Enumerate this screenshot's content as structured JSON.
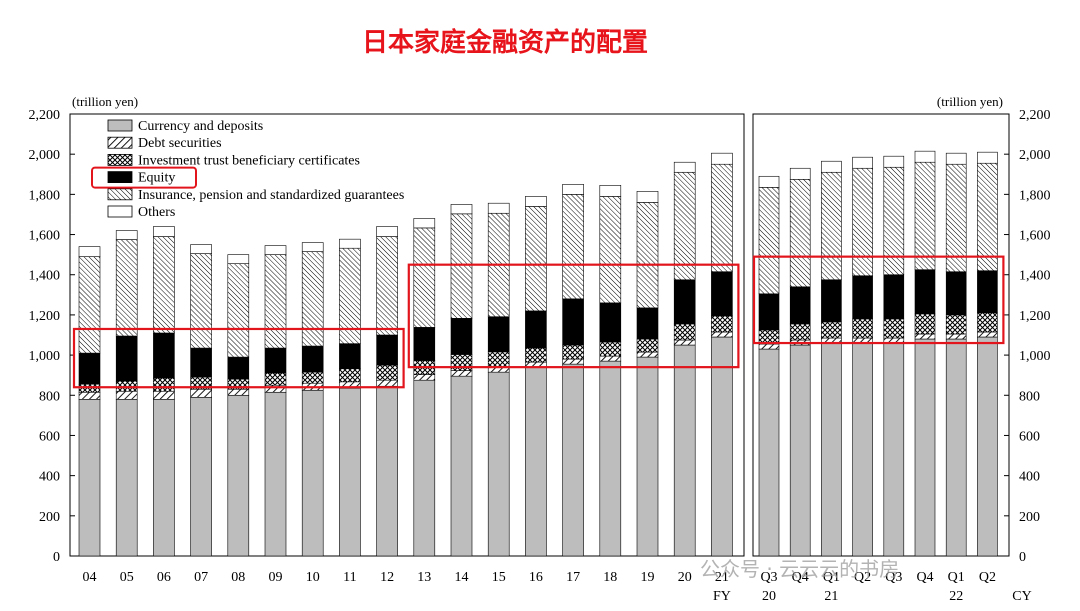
{
  "title": "日本家庭金融资产的配置",
  "watermark": "公众号 · 云云云的书房",
  "chart_data": {
    "type": "bar",
    "stacked": true,
    "unit_left": "(trillion yen)",
    "unit_right": "(trillion yen)",
    "ylim": [
      0,
      2200
    ],
    "yticks": [
      "0",
      "200",
      "400",
      "600",
      "800",
      "1,000",
      "1,200",
      "1,400",
      "1,600",
      "1,800",
      "2,000",
      "2,200"
    ],
    "legend_placement": "top-left",
    "series": [
      {
        "name": "Currency and deposits",
        "color": "#bdbdbd"
      },
      {
        "name": "Debt securities",
        "color": "hatch-diagonal"
      },
      {
        "name": "Investment trust beneficiary certificates",
        "color": "crosshatch"
      },
      {
        "name": "Equity",
        "color": "#000000"
      },
      {
        "name": "Insurance, pension and standardized guarantees",
        "color": "hatch-dense"
      },
      {
        "name": "Others",
        "color": "#ffffff"
      }
    ],
    "annual": {
      "categories": [
        "04",
        "05",
        "06",
        "07",
        "08",
        "09",
        "10",
        "11",
        "12",
        "13",
        "14",
        "15",
        "16",
        "17",
        "18",
        "19",
        "20",
        "21"
      ],
      "axis_note": "FY",
      "currency": [
        780,
        780,
        780,
        790,
        800,
        815,
        825,
        835,
        845,
        875,
        895,
        915,
        940,
        955,
        970,
        990,
        1050,
        1090
      ],
      "debt": [
        35,
        40,
        40,
        40,
        30,
        35,
        35,
        32,
        30,
        28,
        28,
        26,
        25,
        25,
        25,
        25,
        25,
        25
      ],
      "investment_trust": [
        40,
        50,
        65,
        60,
        50,
        60,
        55,
        65,
        75,
        70,
        80,
        75,
        70,
        70,
        70,
        65,
        80,
        80
      ],
      "equity": [
        155,
        225,
        225,
        145,
        110,
        125,
        130,
        125,
        150,
        165,
        180,
        175,
        185,
        230,
        195,
        155,
        220,
        220
      ],
      "insurance": [
        480,
        480,
        480,
        470,
        465,
        465,
        470,
        475,
        490,
        495,
        520,
        515,
        520,
        520,
        530,
        525,
        535,
        535
      ],
      "others": [
        50,
        45,
        50,
        45,
        45,
        45,
        45,
        45,
        50,
        47,
        47,
        50,
        50,
        50,
        55,
        55,
        50,
        55
      ]
    },
    "quarterly": {
      "categories": [
        "Q3",
        "Q4",
        "Q1",
        "Q2",
        "Q3",
        "Q4",
        "Q1",
        "Q2"
      ],
      "year_labels": [
        {
          "label": "20",
          "index": 0
        },
        {
          "label": "21",
          "index": 2
        },
        {
          "label": "22",
          "index": 6
        }
      ],
      "axis_note": "CY",
      "currency": [
        1030,
        1050,
        1060,
        1060,
        1060,
        1080,
        1080,
        1090
      ],
      "debt": [
        25,
        25,
        25,
        25,
        25,
        25,
        25,
        25
      ],
      "investment_trust": [
        70,
        80,
        80,
        95,
        95,
        100,
        95,
        95
      ],
      "equity": [
        180,
        185,
        210,
        215,
        220,
        220,
        215,
        210
      ],
      "insurance": [
        530,
        535,
        535,
        535,
        535,
        535,
        535,
        535
      ],
      "others": [
        55,
        55,
        55,
        55,
        55,
        55,
        55,
        55
      ]
    },
    "highlights": [
      {
        "panel": "annual",
        "from": "04",
        "to": "12",
        "ylim": [
          840,
          1130
        ]
      },
      {
        "panel": "annual",
        "from": "13",
        "to": "21",
        "ylim": [
          940,
          1450
        ]
      },
      {
        "panel": "quarterly",
        "from": "Q3",
        "to": "Q2",
        "ylim": [
          1060,
          1490
        ]
      },
      {
        "panel": "legend",
        "item": "Equity"
      }
    ]
  }
}
